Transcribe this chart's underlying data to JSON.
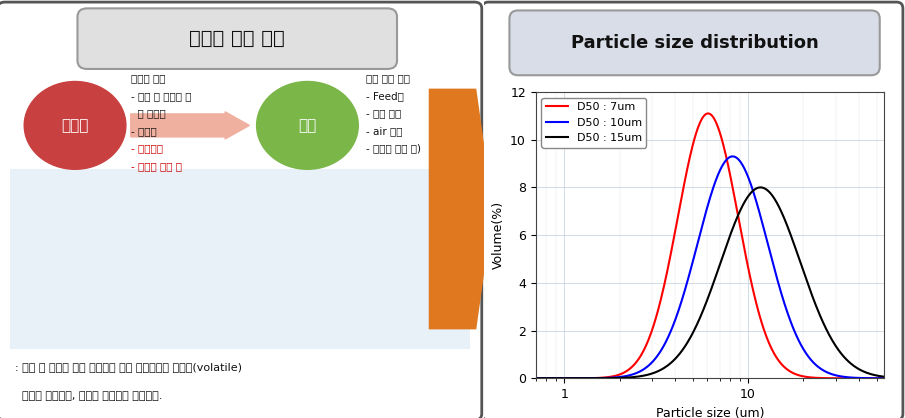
{
  "title_left": "음극재 제조 공정",
  "title_right": "Particle size distribution",
  "chart_xlabel": "Particle size (um)",
  "chart_ylabel": "Volume(%)",
  "ylim": [
    0,
    12
  ],
  "yticks": [
    0,
    2,
    4,
    6,
    8,
    10,
    12
  ],
  "curves": [
    {
      "label": "D50 : 7um",
      "color": "#ff0000",
      "d50": 7,
      "sigma": 0.38
    },
    {
      "label": "D50 : 10um",
      "color": "#0000ff",
      "d50": 10,
      "sigma": 0.44
    },
    {
      "label": "D50 : 15um",
      "color": "#000000",
      "d50": 15,
      "sigma": 0.5
    }
  ],
  "curve_peaks": [
    11.1,
    9.3,
    8.0
  ],
  "bg_color": "#ffffff",
  "chart_bg": "#ffffff",
  "grid_color": "#aabbcc",
  "grid_alpha": 0.6,
  "circle_red": "#c94040",
  "circle_green": "#7ab648",
  "text_red": "#cc0000",
  "arrow_color": "#e07820",
  "label_yercheori": "열처리",
  "label_bunswae": "분쇄",
  "legend_fontsize": 8,
  "axis_label_fontsize": 9,
  "title_fontsize": 13
}
